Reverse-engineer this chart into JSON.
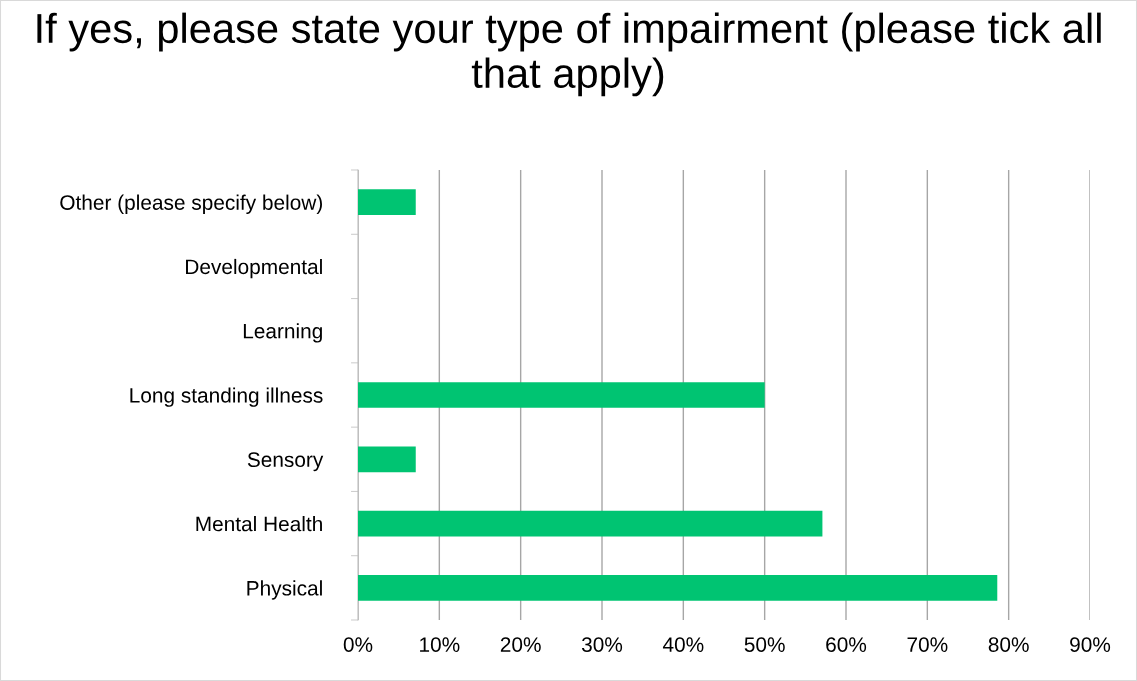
{
  "chart_data": {
    "type": "bar",
    "orientation": "horizontal",
    "title": "If yes, please state your type of impairment (please tick all that apply)",
    "categories": [
      "Other (please specify below)",
      "Developmental",
      "Learning",
      "Long standing illness",
      "Sensory",
      "Mental Health",
      "Physical"
    ],
    "values": [
      7.1,
      0,
      0,
      50,
      7.1,
      57.1,
      78.6
    ],
    "color": "#00c472",
    "xlim": [
      0,
      90
    ],
    "xticks": [
      {
        "value": 0,
        "label": "0%"
      },
      {
        "value": 10,
        "label": "10%"
      },
      {
        "value": 20,
        "label": "20%"
      },
      {
        "value": 30,
        "label": "30%"
      },
      {
        "value": 40,
        "label": "40%"
      },
      {
        "value": 50,
        "label": "50%"
      },
      {
        "value": 60,
        "label": "60%"
      },
      {
        "value": 70,
        "label": "70%"
      },
      {
        "value": 80,
        "label": "80%"
      },
      {
        "value": 90,
        "label": "90%"
      }
    ],
    "grid": "x",
    "legend": false
  }
}
